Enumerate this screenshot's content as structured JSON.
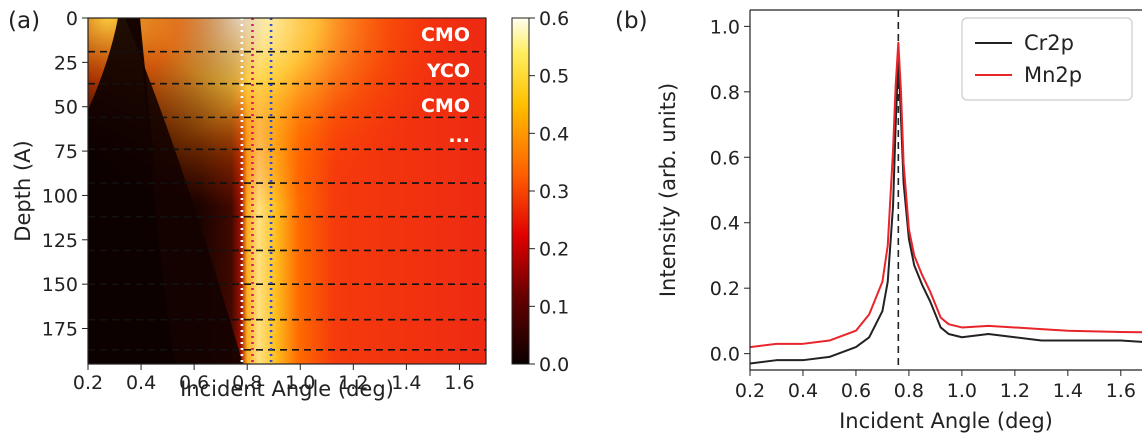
{
  "chart_data": [
    {
      "panel": "(a)",
      "type": "heatmap",
      "xlabel": "Incident Angle (deg)",
      "ylabel": "Depth (A)",
      "xlim": [
        0.2,
        1.7
      ],
      "ylim": [
        0,
        195
      ],
      "x_ticks": [
        "0.2",
        "0.4",
        "0.6",
        "0.8",
        "1.0",
        "1.2",
        "1.4",
        "1.6"
      ],
      "y_ticks": [
        "0",
        "25",
        "50",
        "75",
        "100",
        "125",
        "150",
        "175"
      ],
      "colorbar": {
        "min": 0.0,
        "max": 0.6,
        "ticks": [
          "0.0",
          "0.1",
          "0.2",
          "0.3",
          "0.4",
          "0.5",
          "0.6"
        ],
        "colormap": "hot"
      },
      "layer_labels": [
        "CMO",
        "YCO",
        "CMO",
        "..."
      ],
      "layer_boundaries": [
        19,
        37,
        56,
        74,
        93,
        112,
        131,
        150,
        170,
        187
      ],
      "vertical_markers": [
        {
          "x": 0.78,
          "color": "#ffffff",
          "style": "dotted"
        },
        {
          "x": 0.82,
          "color": "#d0206a",
          "style": "dotted"
        },
        {
          "x": 0.89,
          "color": "#2a4fd0",
          "style": "dotted"
        }
      ]
    },
    {
      "panel": "(b)",
      "type": "line",
      "xlabel": "Incident Angle (deg)",
      "ylabel": "Intensity (arb. units)",
      "xlim": [
        0.2,
        1.7
      ],
      "ylim": [
        -0.05,
        1.05
      ],
      "x_ticks": [
        "0.2",
        "0.4",
        "0.6",
        "0.8",
        "1.0",
        "1.2",
        "1.4",
        "1.6"
      ],
      "y_ticks": [
        "0.0",
        "0.2",
        "0.4",
        "0.6",
        "0.8",
        "1.0"
      ],
      "vertical_line": {
        "x": 0.76,
        "style": "dashed"
      },
      "legend_position": "top-right",
      "x": [
        0.2,
        0.3,
        0.4,
        0.5,
        0.6,
        0.65,
        0.7,
        0.72,
        0.74,
        0.75,
        0.76,
        0.77,
        0.78,
        0.8,
        0.82,
        0.85,
        0.88,
        0.9,
        0.92,
        0.95,
        1.0,
        1.1,
        1.2,
        1.3,
        1.4,
        1.5,
        1.6,
        1.7
      ],
      "series": [
        {
          "name": "Cr2p",
          "color": "#222222",
          "values": [
            -0.03,
            -0.02,
            -0.02,
            -0.01,
            0.02,
            0.05,
            0.13,
            0.22,
            0.45,
            0.7,
            0.91,
            0.72,
            0.52,
            0.35,
            0.27,
            0.21,
            0.16,
            0.12,
            0.08,
            0.06,
            0.05,
            0.06,
            0.05,
            0.04,
            0.04,
            0.04,
            0.04,
            0.035
          ]
        },
        {
          "name": "Mn2p",
          "color": "#e8252a",
          "values": [
            0.02,
            0.03,
            0.03,
            0.04,
            0.07,
            0.12,
            0.22,
            0.33,
            0.62,
            0.82,
            0.95,
            0.8,
            0.58,
            0.38,
            0.3,
            0.24,
            0.19,
            0.15,
            0.11,
            0.09,
            0.08,
            0.085,
            0.08,
            0.075,
            0.07,
            0.068,
            0.066,
            0.065
          ]
        }
      ]
    }
  ]
}
